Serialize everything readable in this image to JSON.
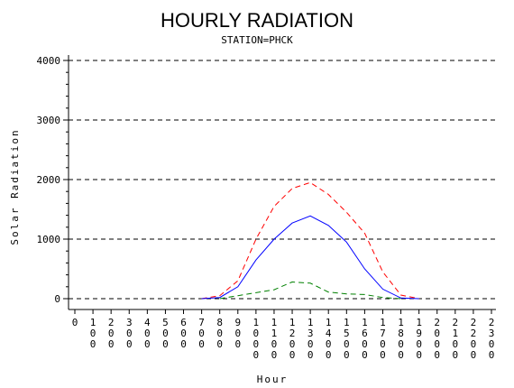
{
  "chart_data": {
    "type": "line",
    "title": "HOURLY RADIATION",
    "subtitle": "STATION=PHCK",
    "xlabel": "Hour",
    "ylabel": "Solar Radiation",
    "ylim": [
      0,
      4000
    ],
    "yticks": [
      0,
      1000,
      2000,
      3000,
      4000
    ],
    "grid": "horizontal dashed",
    "categories": [
      "0",
      "100",
      "200",
      "300",
      "400",
      "500",
      "600",
      "700",
      "800",
      "900",
      "1000",
      "1100",
      "1200",
      "1300",
      "1400",
      "1500",
      "1600",
      "1700",
      "1800",
      "1900",
      "2000",
      "2100",
      "2200",
      "2300"
    ],
    "series": [
      {
        "color": "#ff0000",
        "style": "dashed",
        "values": [
          0,
          0,
          0,
          0,
          0,
          0,
          0,
          0,
          50,
          300,
          1000,
          1550,
          1850,
          1950,
          1750,
          1450,
          1100,
          450,
          60,
          0,
          0,
          0,
          0,
          0
        ]
      },
      {
        "color": "#0000ff",
        "style": "solid",
        "values": [
          0,
          0,
          0,
          0,
          0,
          0,
          0,
          0,
          20,
          200,
          650,
          1000,
          1270,
          1390,
          1230,
          950,
          500,
          160,
          10,
          0,
          0,
          0,
          0,
          0
        ]
      },
      {
        "color": "#008000",
        "style": "dashed",
        "values": [
          0,
          0,
          0,
          0,
          0,
          0,
          0,
          0,
          0,
          50,
          100,
          150,
          280,
          260,
          110,
          80,
          70,
          20,
          0,
          0,
          0,
          0,
          0,
          0
        ]
      }
    ]
  }
}
